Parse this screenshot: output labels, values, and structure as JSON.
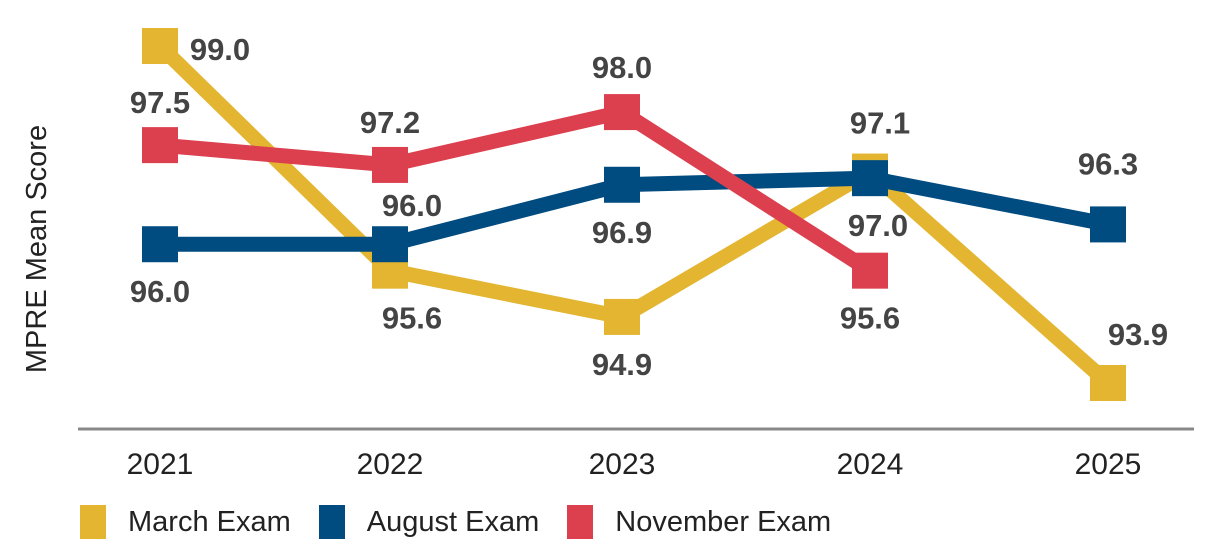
{
  "chart_data": {
    "type": "line",
    "title": "",
    "xlabel": "",
    "ylabel": "MPRE Mean Score",
    "categories": [
      "2021",
      "2022",
      "2023",
      "2024",
      "2025"
    ],
    "series": [
      {
        "name": "March Exam",
        "color": "#E3B530",
        "values": [
          99.0,
          95.6,
          94.9,
          97.1,
          93.9
        ]
      },
      {
        "name": "August Exam",
        "color": "#004B7F",
        "values": [
          96.0,
          96.0,
          96.9,
          97.0,
          96.3
        ]
      },
      {
        "name": "November Exam",
        "color": "#DC3F4E",
        "values": [
          97.5,
          97.2,
          98.0,
          95.6,
          null
        ]
      }
    ],
    "ylim": [
      93.4,
      99.4
    ],
    "grid": false,
    "legend_position": "bottom"
  },
  "labels": {
    "ylabel": "MPRE Mean Score",
    "legend": [
      "March Exam",
      "August Exam",
      "November Exam"
    ]
  }
}
